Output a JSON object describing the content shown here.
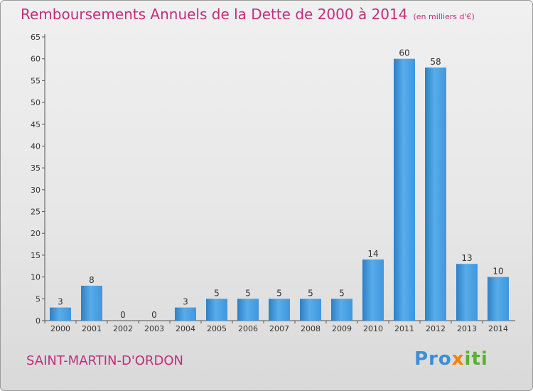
{
  "title": "Remboursements Annuels de la Dette de 2000 à 2014",
  "unit": "(en milliers d'€)",
  "commune": "SAINT-MARTIN-D'ORDON",
  "logo": {
    "p1": "Pro",
    "p2": "x",
    "p3": "iti"
  },
  "chart_data": {
    "type": "bar",
    "categories": [
      "2000",
      "2001",
      "2002",
      "2003",
      "2004",
      "2005",
      "2006",
      "2007",
      "2008",
      "2009",
      "2010",
      "2011",
      "2012",
      "2013",
      "2014"
    ],
    "values": [
      3,
      8,
      0,
      0,
      3,
      5,
      5,
      5,
      5,
      5,
      14,
      60,
      58,
      13,
      10
    ],
    "ylim": [
      0,
      65
    ],
    "yticks": [
      0,
      5,
      10,
      15,
      20,
      25,
      30,
      35,
      40,
      45,
      50,
      55,
      60,
      65
    ],
    "grid": false,
    "bar_color": "#3f97de",
    "title_color": "#c12e7c"
  }
}
